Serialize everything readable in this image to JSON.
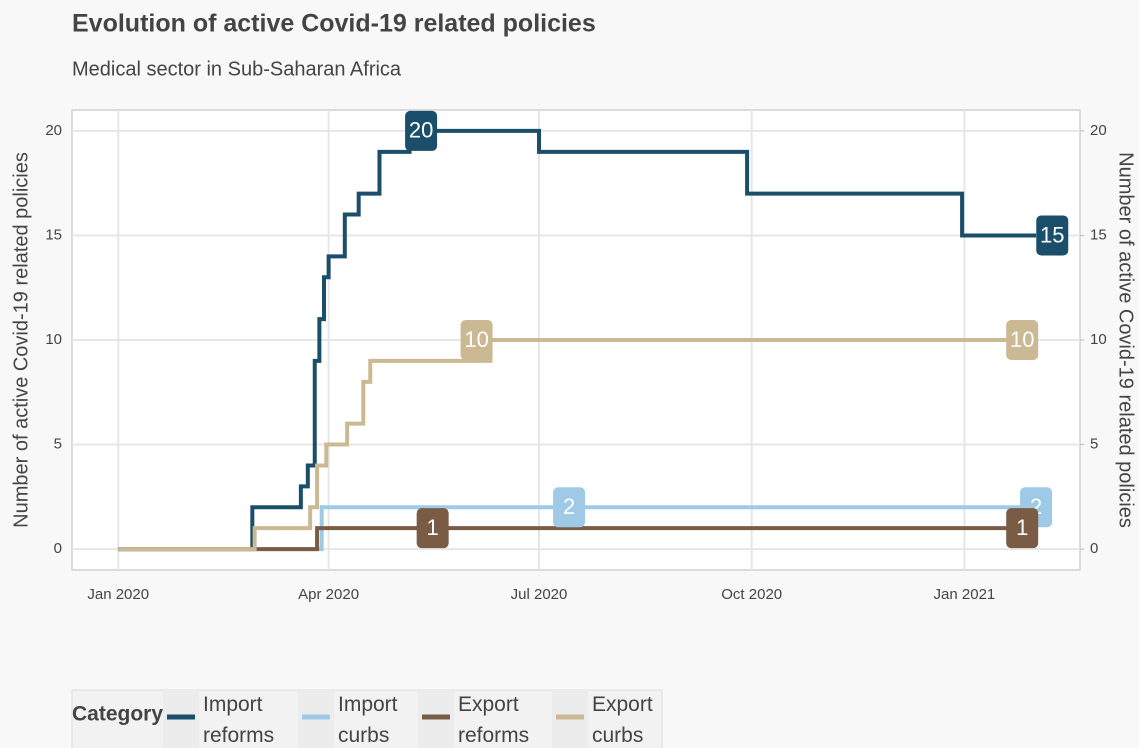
{
  "chart_data": {
    "type": "step-line",
    "title": "Evolution of active Covid-19 related policies",
    "subtitle": "Medical sector in Sub-Saharan Africa",
    "y_label": "Number of active Covid-19 related policies",
    "y2_label": "Number of active Covid-19 related policies",
    "legend_title": "Category",
    "legend_position": "bottom",
    "grid": true,
    "xlim": [
      "2019-12-12",
      "2021-02-20"
    ],
    "xticks": [
      {
        "value": "2020-01-01",
        "label": "Jan 2020"
      },
      {
        "value": "2020-04-01",
        "label": "Apr 2020"
      },
      {
        "value": "2020-07-01",
        "label": "Jul 2020"
      },
      {
        "value": "2020-10-01",
        "label": "Oct 2020"
      },
      {
        "value": "2021-01-01",
        "label": "Jan 2021"
      }
    ],
    "ylim": [
      -1,
      21
    ],
    "yticks": [
      0,
      5,
      10,
      15,
      20
    ],
    "y2lim": [
      -1,
      21
    ],
    "y2ticks": [
      0,
      5,
      10,
      15,
      20
    ],
    "series": [
      {
        "name": "Import reforms",
        "color": "#1a4e6a",
        "x": [
          "2020-01-01",
          "2020-02-28",
          "2020-03-20",
          "2020-03-23",
          "2020-03-26",
          "2020-03-28",
          "2020-03-30",
          "2020-04-01",
          "2020-04-08",
          "2020-04-14",
          "2020-04-23",
          "2020-05-06",
          "2020-07-01",
          "2020-09-29",
          "2020-12-31",
          "2021-02-01"
        ],
        "values": [
          0,
          2,
          3,
          4,
          9,
          11,
          13,
          14,
          16,
          17,
          19,
          20,
          19,
          17,
          15,
          15
        ],
        "labels": [
          {
            "x": "2020-05-11",
            "value": 20
          },
          {
            "x": "2021-02-08",
            "value": 15
          }
        ]
      },
      {
        "name": "Import curbs",
        "color": "#9ecae8",
        "x": [
          "2020-01-01",
          "2020-03-29",
          "2021-02-01"
        ],
        "values": [
          0,
          2,
          2
        ],
        "labels": [
          {
            "x": "2020-07-14",
            "value": 2
          },
          {
            "x": "2021-02-01",
            "value": 2
          }
        ]
      },
      {
        "name": "Export reforms",
        "color": "#7a5c45",
        "x": [
          "2020-01-01",
          "2020-03-27",
          "2021-02-01"
        ],
        "values": [
          0,
          1,
          1
        ],
        "labels": [
          {
            "x": "2020-05-16",
            "value": 1
          },
          {
            "x": "2021-01-26",
            "value": 1
          }
        ]
      },
      {
        "name": "Export curbs",
        "color": "#cbb994",
        "x": [
          "2020-01-01",
          "2020-02-29",
          "2020-03-24",
          "2020-03-27",
          "2020-03-31",
          "2020-04-09",
          "2020-04-16",
          "2020-04-19",
          "2020-06-10",
          "2021-02-01"
        ],
        "values": [
          0,
          1,
          2,
          4,
          5,
          6,
          8,
          9,
          10,
          10
        ],
        "labels": [
          {
            "x": "2020-06-04",
            "value": 10
          },
          {
            "x": "2021-01-26",
            "value": 10
          }
        ]
      }
    ]
  }
}
